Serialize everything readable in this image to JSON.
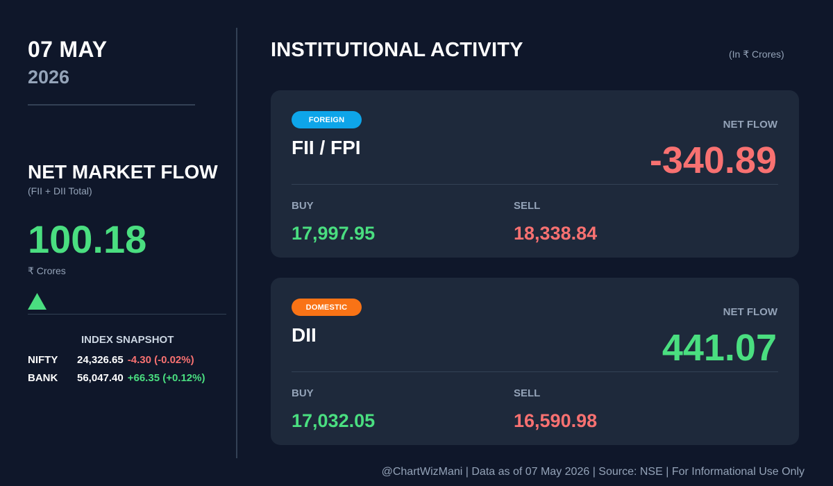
{
  "date": {
    "day_month": "07 MAY",
    "year": "2026"
  },
  "net_market_flow": {
    "title": "NET MARKET FLOW",
    "subtitle": "(FII + DII Total)",
    "value": "100.18",
    "unit": "₹ Crores",
    "direction_icon": "triangle-up-icon",
    "color": "#4ade80"
  },
  "index_snapshot": {
    "title": "INDEX SNAPSHOT",
    "rows": [
      {
        "name": "NIFTY",
        "value": "24,326.65",
        "change": "-4.30 (-0.02%)",
        "trend": "negative"
      },
      {
        "name": "BANK",
        "value": "56,047.40",
        "change": "+66.35 (+0.12%)",
        "trend": "positive"
      }
    ]
  },
  "institutional": {
    "title": "INSTITUTIONAL ACTIVITY",
    "unit_note": "(In ₹ Crores)",
    "fii": {
      "badge": "FOREIGN",
      "badge_color": "#0ea5e9",
      "name": "FII / FPI",
      "net_flow_label": "NET FLOW",
      "net_flow": "-340.89",
      "net_flow_color": "#f87171",
      "buy_label": "BUY",
      "buy": "17,997.95",
      "sell_label": "SELL",
      "sell": "18,338.84"
    },
    "dii": {
      "badge": "DOMESTIC",
      "badge_color": "#f97316",
      "name": "DII",
      "net_flow_label": "NET FLOW",
      "net_flow": "441.07",
      "net_flow_color": "#4ade80",
      "buy_label": "BUY",
      "buy": "17,032.05",
      "sell_label": "SELL",
      "sell": "16,590.98"
    }
  },
  "footer": "@ChartWizMani | Data as of 07 May 2026 | Source: NSE | For Informational Use Only",
  "colors": {
    "background": "#0f172a",
    "card": "#1e293b",
    "positive": "#4ade80",
    "negative": "#f87171",
    "muted": "#94a3b8"
  }
}
